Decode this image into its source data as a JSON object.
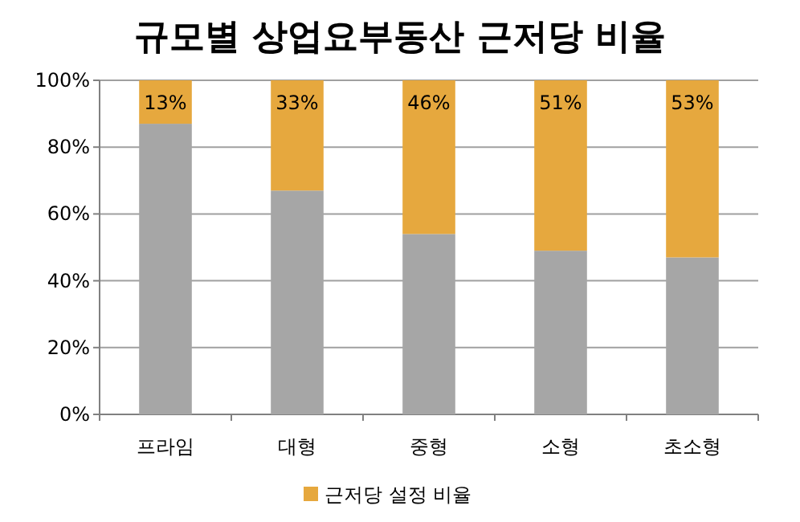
{
  "chart_data": {
    "type": "bar",
    "title": "규모별 상업요부동산 근저당 비율",
    "stacked": true,
    "categories": [
      "프라임",
      "대형",
      "중형",
      "소형",
      "초소형"
    ],
    "series": [
      {
        "color": "#a6a6a6",
        "values": [
          87,
          67,
          54,
          49,
          47
        ]
      },
      {
        "name": "근저당 설정 비율",
        "color": "#e6a83e",
        "values": [
          13,
          33,
          46,
          51,
          53
        ],
        "value_labels": [
          "13%",
          "33%",
          "46%",
          "51%",
          "53%"
        ]
      }
    ],
    "ylim": [
      0,
      100
    ],
    "yticks": [
      {
        "value": 0,
        "label": "0%"
      },
      {
        "value": 20,
        "label": "20%"
      },
      {
        "value": 40,
        "label": "40%"
      },
      {
        "value": 60,
        "label": "60%"
      },
      {
        "value": 80,
        "label": "80%"
      },
      {
        "value": 100,
        "label": "100%"
      }
    ],
    "grid": "y",
    "legend": "bottom"
  }
}
